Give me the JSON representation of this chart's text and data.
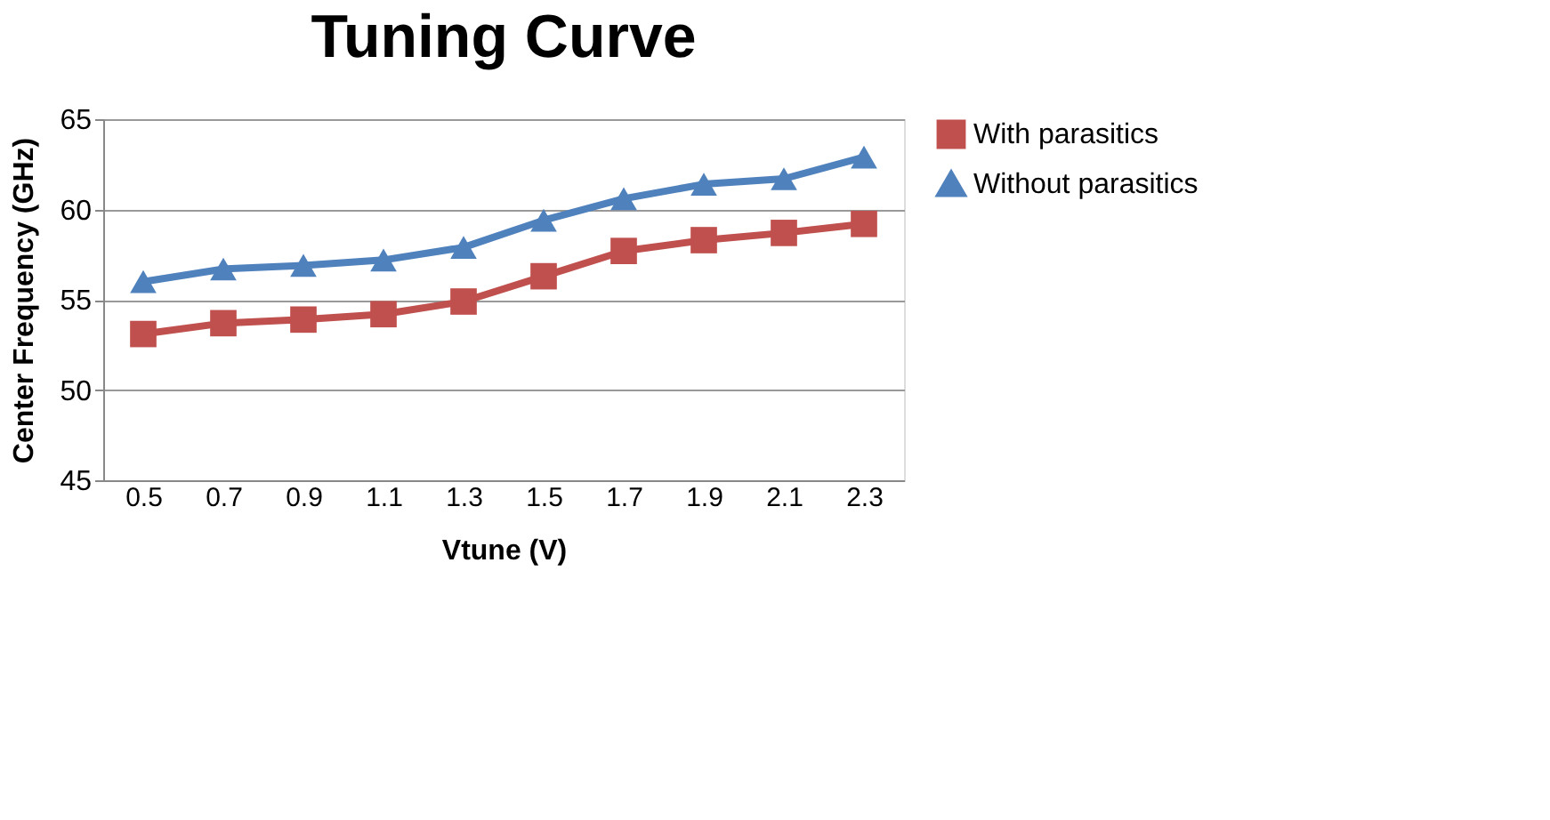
{
  "chart_data": {
    "type": "line",
    "title": "Tuning Curve",
    "xlabel": "Vtune (V)",
    "ylabel": "Center Frequency (GHz)",
    "categories": [
      "0.5",
      "0.7",
      "0.9",
      "1.1",
      "1.3",
      "1.5",
      "1.7",
      "1.9",
      "2.1",
      "2.3"
    ],
    "series": [
      {
        "name": "With parasitics",
        "color": "#c0504d",
        "marker": "square",
        "values": [
          53.1,
          53.7,
          53.9,
          54.2,
          54.9,
          56.3,
          57.7,
          58.3,
          58.7,
          59.2
        ]
      },
      {
        "name": "Without parasitics",
        "color": "#4f81bd",
        "marker": "triangle",
        "values": [
          56.0,
          56.7,
          56.9,
          57.2,
          57.9,
          59.4,
          60.6,
          61.4,
          61.7,
          62.9
        ]
      }
    ],
    "ylim": [
      45,
      65
    ],
    "yticks": [
      45,
      50,
      55,
      60,
      65
    ],
    "grid": "y",
    "legend": "right"
  }
}
